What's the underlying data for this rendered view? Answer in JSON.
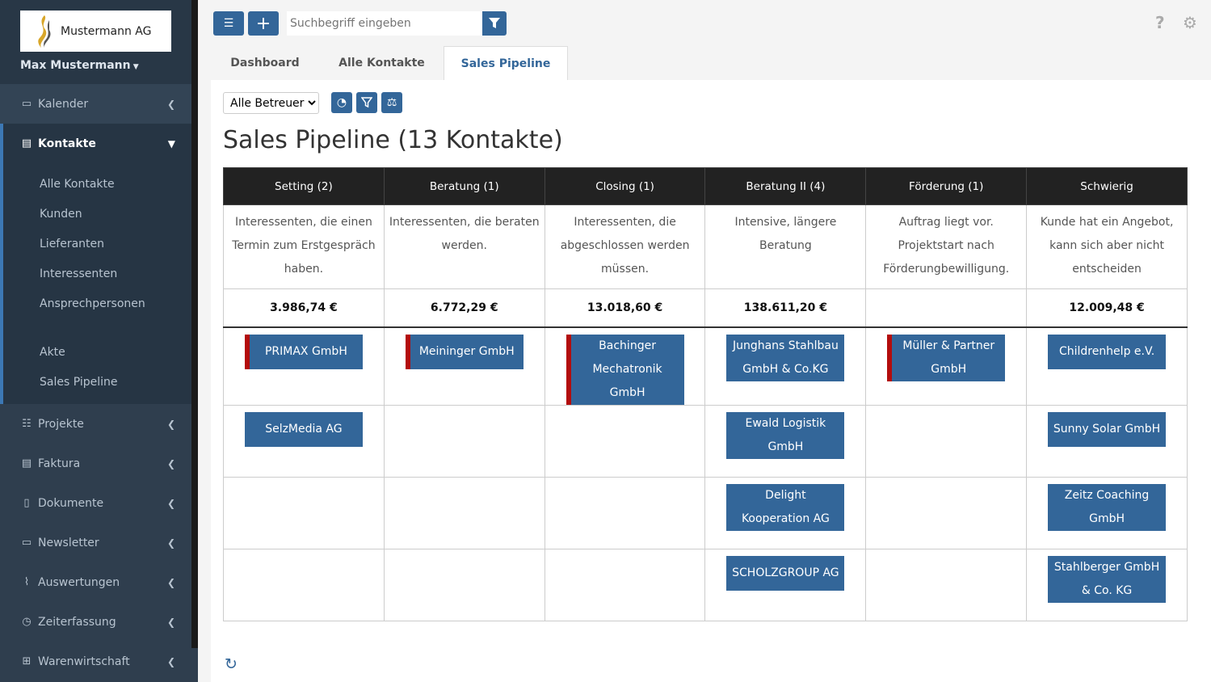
{
  "sidebar": {
    "company": "Mustermann AG",
    "user": "Max Mustermann",
    "items": [
      {
        "label": "Kalender",
        "icon": "calendar-icon"
      },
      {
        "label": "Kontakte",
        "icon": "contact-card-icon"
      }
    ],
    "sub": [
      "Alle Kontakte",
      "Kunden",
      "Lieferanten",
      "Interessenten",
      "Ansprechpersonen",
      "Akte",
      "Sales Pipeline"
    ],
    "items2": [
      {
        "label": "Projekte",
        "icon": "list-icon"
      },
      {
        "label": "Faktura",
        "icon": "invoice-icon"
      },
      {
        "label": "Dokumente",
        "icon": "document-icon"
      },
      {
        "label": "Newsletter",
        "icon": "newsletter-icon"
      },
      {
        "label": "Auswertungen",
        "icon": "chart-icon"
      },
      {
        "label": "Zeiterfassung",
        "icon": "clock-icon"
      },
      {
        "label": "Warenwirtschaft",
        "icon": "warehouse-icon"
      }
    ]
  },
  "toolbar": {
    "search_placeholder": "Suchbegriff eingeben"
  },
  "tabs": [
    "Dashboard",
    "Alle Kontakte",
    "Sales Pipeline"
  ],
  "filter": {
    "selected": "Alle Betreuer"
  },
  "title": "Sales Pipeline (13 Kontakte)",
  "colors": {
    "accent": "#336699",
    "flag": "#b30d0d",
    "sidebar": "#2f3e4e"
  },
  "columns": [
    {
      "name": "Setting (2)",
      "desc": "Interessenten, die einen Termin zum Erstgespräch haben.",
      "sum": "3.986,74 €",
      "cards": [
        {
          "n": "PRIMAX GmbH",
          "flag": true
        },
        {
          "n": "SelzMedia AG",
          "flag": false
        }
      ]
    },
    {
      "name": "Beratung (1)",
      "desc": "Interessenten, die beraten werden.",
      "sum": "6.772,29 €",
      "cards": [
        {
          "n": "Meininger GmbH",
          "flag": true
        }
      ]
    },
    {
      "name": "Closing (1)",
      "desc": "Interessenten, die abgeschlossen werden müssen.",
      "sum": "13.018,60 €",
      "cards": [
        {
          "n": "Bachinger Mechatronik GmbH",
          "flag": true
        }
      ]
    },
    {
      "name": "Beratung II (4)",
      "desc": "Intensive, längere Beratung",
      "sum": "138.611,20 €",
      "cards": [
        {
          "n": "Junghans Stahlbau GmbH & Co.KG",
          "flag": false
        },
        {
          "n": "Ewald Logistik GmbH",
          "flag": false
        },
        {
          "n": "Delight Kooperation AG",
          "flag": false
        },
        {
          "n": "SCHOLZGROUP AG",
          "flag": false
        }
      ]
    },
    {
      "name": "Förderung (1)",
      "desc": "Auftrag liegt vor. Projektstart nach Förderungbewilligung.",
      "sum": "",
      "cards": [
        {
          "n": "Müller & Partner GmbH",
          "flag": true
        }
      ]
    },
    {
      "name": "Schwierig",
      "desc": "Kunde hat ein Angebot, kann sich aber nicht entscheiden",
      "sum": "12.009,48 €",
      "cards": [
        {
          "n": "Childrenhelp e.V.",
          "flag": false
        },
        {
          "n": "Sunny Solar GmbH",
          "flag": false
        },
        {
          "n": "Zeitz Coaching GmbH",
          "flag": false
        },
        {
          "n": "Stahlberger GmbH & Co. KG",
          "flag": false
        }
      ]
    }
  ]
}
